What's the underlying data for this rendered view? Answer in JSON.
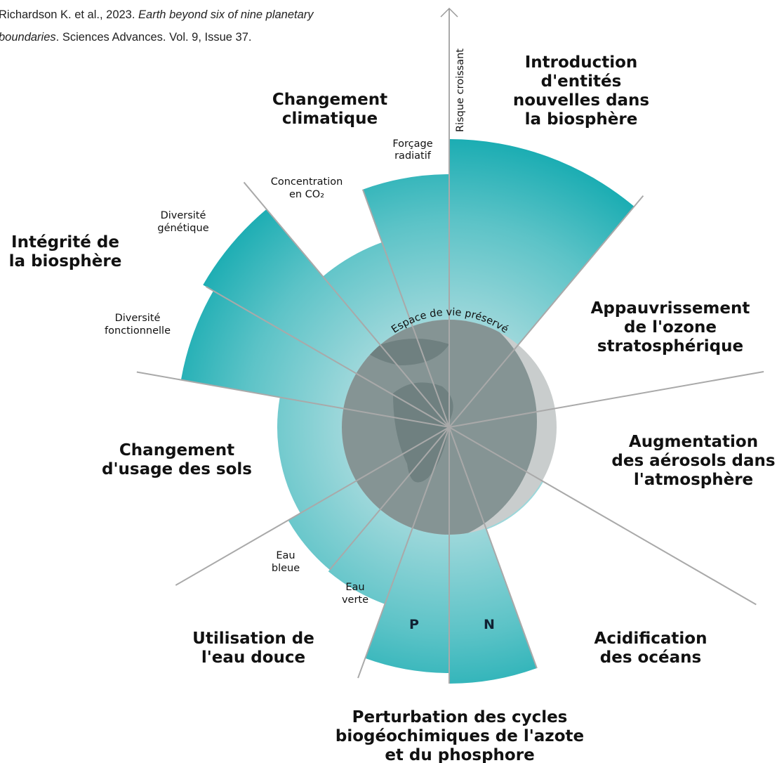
{
  "citation": {
    "authors": "Richardson K. et al., 2023.",
    "title_line1": "Earth beyond six of nine planetary",
    "title_line2": "boundaries",
    "rest": ". Sciences Advances. Vol. 9, Issue 37."
  },
  "axis_label": "Risque croissant",
  "safe_zone_label": "Espace de vie préservé",
  "boundaries": [
    {
      "label": [
        "Introduction",
        "d'entités",
        "nouvelles dans",
        "la biosphère"
      ]
    },
    {
      "label": [
        "Appauvrissement",
        "de l'ozone",
        "stratosphérique"
      ]
    },
    {
      "label": [
        "Augmentation",
        "des aérosols dans",
        "l'atmosphère"
      ]
    },
    {
      "label": [
        "Acidification",
        "des océans"
      ]
    },
    {
      "label": [
        "Perturbation des cycles",
        "biogéochimiques de l'azote",
        "et du phosphore"
      ],
      "sub": [
        [
          "N"
        ],
        [
          "P"
        ]
      ]
    },
    {
      "label": [
        "Utilisation de",
        "l'eau douce"
      ],
      "sub": [
        [
          "Eau",
          "verte"
        ],
        [
          "Eau",
          "bleue"
        ]
      ]
    },
    {
      "label": [
        "Changement",
        "d'usage des sols"
      ]
    },
    {
      "label": [
        "Intégrité de",
        "la biosphère"
      ],
      "sub": [
        [
          "Diversité",
          "fonctionnelle"
        ],
        [
          "Diversité",
          "génétique"
        ]
      ]
    },
    {
      "label": [
        "Changement",
        "climatique"
      ],
      "sub": [
        [
          "Concentration",
          "en CO₂"
        ],
        [
          "Forçage",
          "radiatif"
        ]
      ]
    }
  ]
}
